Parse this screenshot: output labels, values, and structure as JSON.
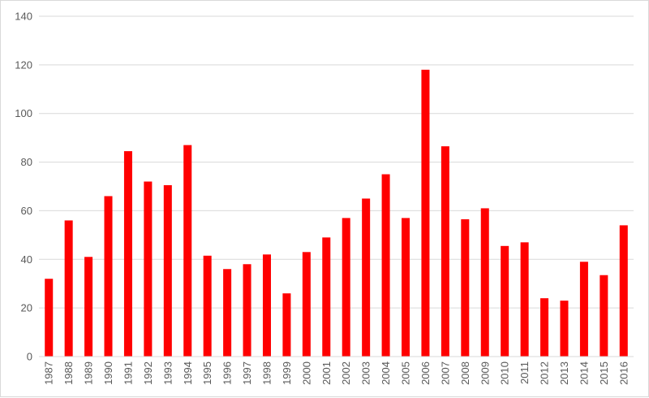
{
  "chart_data": {
    "type": "bar",
    "categories": [
      "1987",
      "1988",
      "1989",
      "1990",
      "1991",
      "1992",
      "1993",
      "1994",
      "1995",
      "1996",
      "1997",
      "1998",
      "1999",
      "2000",
      "2001",
      "2002",
      "2003",
      "2004",
      "2005",
      "2006",
      "2007",
      "2008",
      "2009",
      "2010",
      "2011",
      "2012",
      "2013",
      "2014",
      "2015",
      "2016"
    ],
    "values": [
      32,
      56,
      41,
      66,
      84.5,
      72,
      70.5,
      87,
      41.5,
      36,
      38,
      42,
      26,
      43,
      49,
      57,
      65,
      75,
      57,
      118,
      86.5,
      56.5,
      61,
      45.5,
      47,
      24,
      23,
      39,
      33.5,
      54
    ],
    "title": "",
    "xlabel": "",
    "ylabel": "",
    "ylim": [
      0,
      140
    ],
    "yticks": [
      0,
      20,
      40,
      60,
      80,
      100,
      120,
      140
    ],
    "bar_color": "#ff0000",
    "gridlines": true,
    "legend": "none"
  }
}
